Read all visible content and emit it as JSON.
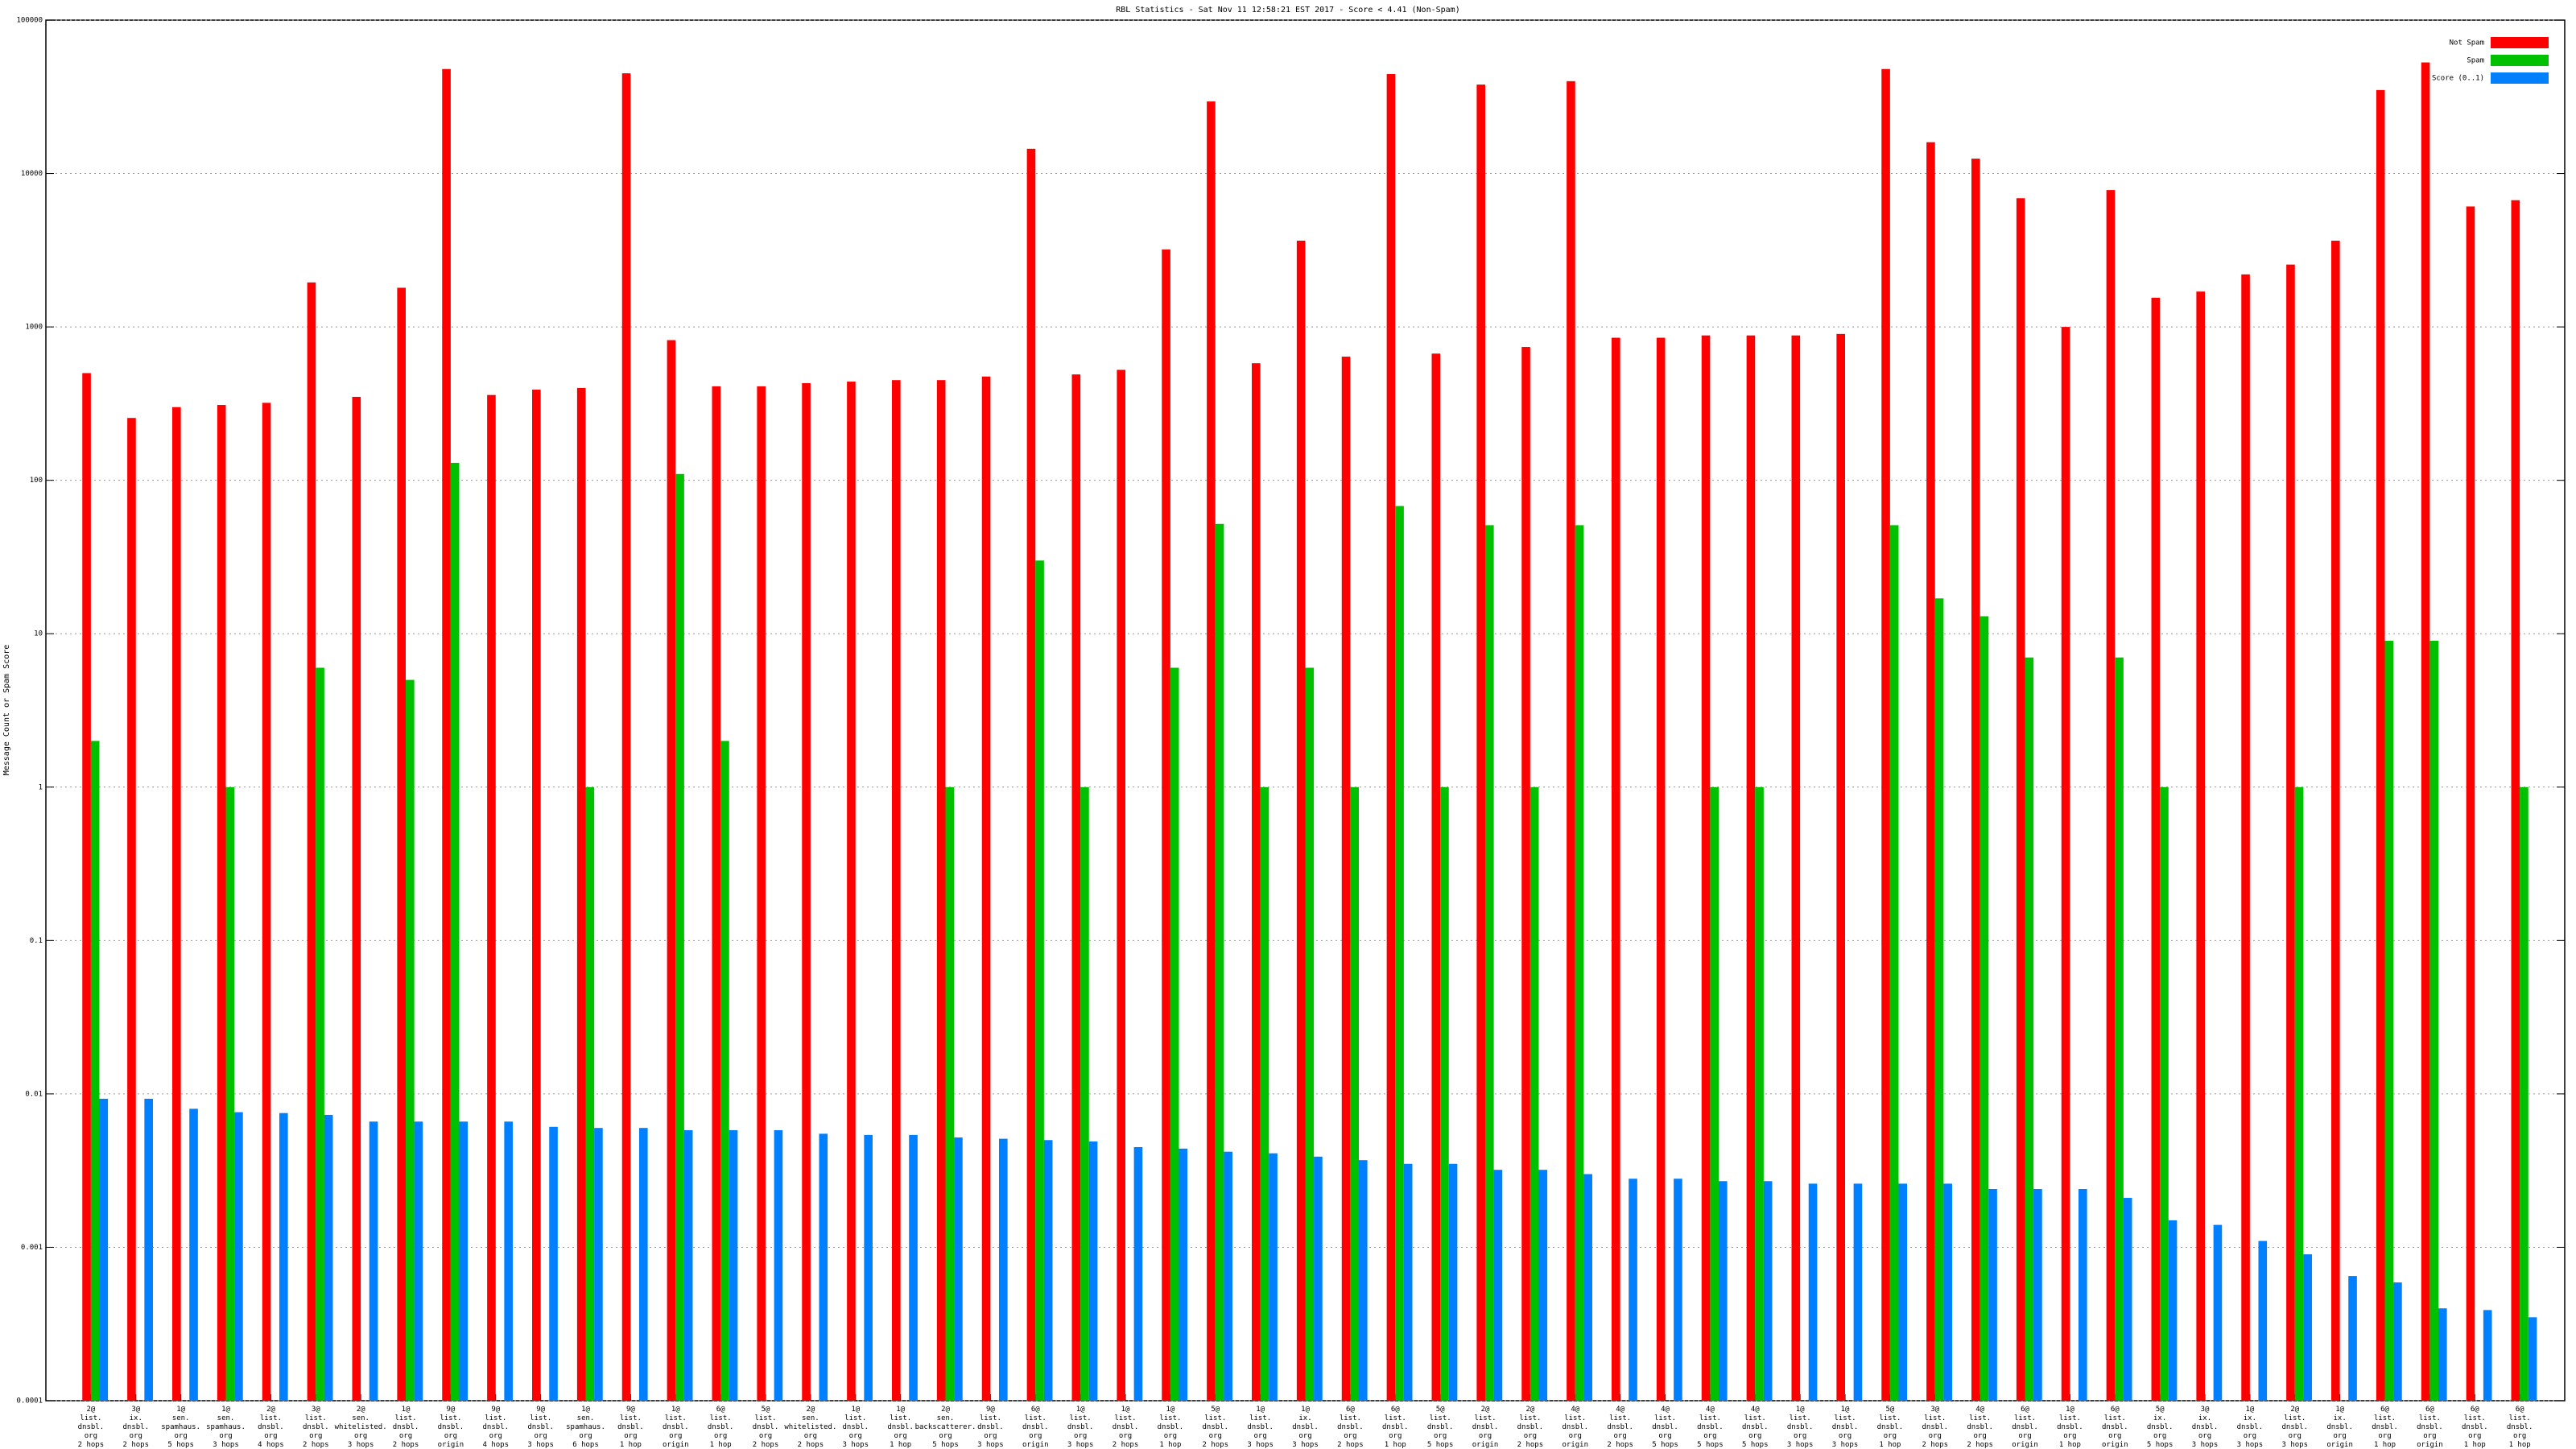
{
  "chart_data": {
    "type": "bar",
    "title": "RBL Statistics - Sat Nov 11 12:58:21 EST 2017 - Score < 4.41 (Non-Spam)",
    "ylabel": "Message Count or Spam Score",
    "yscale": "log",
    "grid": true,
    "legend": "upper right",
    "ylim": [
      0.0001,
      100000
    ],
    "yticks": [
      0.0001,
      0.001,
      0.01,
      0.1,
      1,
      10,
      100,
      1000,
      10000,
      100000
    ],
    "categories": [
      [
        "2@",
        "list.",
        "dnsbl.",
        "org",
        "2 hops"
      ],
      [
        "3@",
        "ix.",
        "dnsbl.",
        "org",
        "2 hops"
      ],
      [
        "1@",
        "sen.",
        "spamhaus.",
        "org",
        "5 hops"
      ],
      [
        "1@",
        "sen.",
        "spamhaus.",
        "org",
        "3 hops"
      ],
      [
        "2@",
        "list.",
        "dnsbl.",
        "org",
        "4 hops"
      ],
      [
        "3@",
        "list.",
        "dnsbl.",
        "org",
        "2 hops"
      ],
      [
        "2@",
        "sen.",
        "whitelisted.",
        "org",
        "3 hops"
      ],
      [
        "1@",
        "list.",
        "dnsbl.",
        "org",
        "2 hops"
      ],
      [
        "9@",
        "list.",
        "dnsbl.",
        "org",
        "origin"
      ],
      [
        "9@",
        "list.",
        "dnsbl.",
        "org",
        "4 hops"
      ],
      [
        "9@",
        "list.",
        "dnsbl.",
        "org",
        "3 hops"
      ],
      [
        "1@",
        "sen.",
        "spamhaus.",
        "org",
        "6 hops"
      ],
      [
        "9@",
        "list.",
        "dnsbl.",
        "org",
        "1 hop"
      ],
      [
        "1@",
        "list.",
        "dnsbl.",
        "org",
        "origin"
      ],
      [
        "6@",
        "list.",
        "dnsbl.",
        "org",
        "1 hop"
      ],
      [
        "5@",
        "list.",
        "dnsbl.",
        "org",
        "2 hops"
      ],
      [
        "2@",
        "sen.",
        "whitelisted.",
        "org",
        "2 hops"
      ],
      [
        "1@",
        "list.",
        "dnsbl.",
        "org",
        "3 hops"
      ],
      [
        "1@",
        "list.",
        "dnsbl.",
        "org",
        "1 hop"
      ],
      [
        "2@",
        "sen.",
        "backscatterer.",
        "org",
        "5 hops"
      ],
      [
        "9@",
        "list.",
        "dnsbl.",
        "org",
        "3 hops"
      ],
      [
        "6@",
        "list.",
        "dnsbl.",
        "org",
        "origin"
      ],
      [
        "1@",
        "list.",
        "dnsbl.",
        "org",
        "3 hops"
      ],
      [
        "1@",
        "list.",
        "dnsbl.",
        "org",
        "2 hops"
      ],
      [
        "1@",
        "list.",
        "dnsbl.",
        "org",
        "1 hop"
      ],
      [
        "5@",
        "list.",
        "dnsbl.",
        "org",
        "2 hops"
      ],
      [
        "1@",
        "list.",
        "dnsbl.",
        "org",
        "3 hops"
      ],
      [
        "1@",
        "ix.",
        "dnsbl.",
        "org",
        "3 hops"
      ],
      [
        "6@",
        "list.",
        "dnsbl.",
        "org",
        "2 hops"
      ],
      [
        "6@",
        "list.",
        "dnsbl.",
        "org",
        "1 hop"
      ],
      [
        "5@",
        "list.",
        "dnsbl.",
        "org",
        "5 hops"
      ],
      [
        "2@",
        "list.",
        "dnsbl.",
        "org",
        "origin"
      ],
      [
        "2@",
        "list.",
        "dnsbl.",
        "org",
        "2 hops"
      ],
      [
        "4@",
        "list.",
        "dnsbl.",
        "org",
        "origin"
      ],
      [
        "4@",
        "list.",
        "dnsbl.",
        "org",
        "2 hops"
      ],
      [
        "4@",
        "list.",
        "dnsbl.",
        "org",
        "5 hops"
      ],
      [
        "4@",
        "list.",
        "dnsbl.",
        "org",
        "5 hops"
      ],
      [
        "4@",
        "list.",
        "dnsbl.",
        "org",
        "5 hops"
      ],
      [
        "1@",
        "list.",
        "dnsbl.",
        "org",
        "3 hops"
      ],
      [
        "1@",
        "list.",
        "dnsbl.",
        "org",
        "3 hops"
      ],
      [
        "5@",
        "list.",
        "dnsbl.",
        "org",
        "1 hop"
      ],
      [
        "3@",
        "list.",
        "dnsbl.",
        "org",
        "2 hops"
      ],
      [
        "4@",
        "list.",
        "dnsbl.",
        "org",
        "2 hops"
      ],
      [
        "6@",
        "list.",
        "dnsbl.",
        "org",
        "origin"
      ],
      [
        "1@",
        "list.",
        "dnsbl.",
        "org",
        "1 hop"
      ],
      [
        "6@",
        "list.",
        "dnsbl.",
        "org",
        "origin"
      ],
      [
        "5@",
        "ix.",
        "dnsbl.",
        "org",
        "5 hops"
      ],
      [
        "3@",
        "ix.",
        "dnsbl.",
        "org",
        "3 hops"
      ],
      [
        "1@",
        "ix.",
        "dnsbl.",
        "org",
        "3 hops"
      ],
      [
        "2@",
        "list.",
        "dnsbl.",
        "org",
        "3 hops"
      ],
      [
        "1@",
        "ix.",
        "dnsbl.",
        "org",
        "origin"
      ],
      [
        "6@",
        "list.",
        "dnsbl.",
        "org",
        "1 hop"
      ],
      [
        "6@",
        "list.",
        "dnsbl.",
        "org",
        "origin"
      ],
      [
        "6@",
        "list.",
        "dnsbl.",
        "org",
        "1 hop"
      ],
      [
        "6@",
        "list.",
        "dnsbl.",
        "org",
        "1 hop"
      ]
    ],
    "series": [
      {
        "name": "Not Spam",
        "color": "#ff0000",
        "values": [
          500,
          255,
          300,
          310,
          320,
          1950,
          350,
          1800,
          48000,
          360,
          390,
          400,
          45000,
          820,
          410,
          410,
          430,
          440,
          450,
          450,
          475,
          14500,
          490,
          525,
          3200,
          29500,
          580,
          3650,
          640,
          44500,
          670,
          38000,
          740,
          40000,
          850,
          850,
          880,
          880,
          880,
          900,
          48000,
          16000,
          12500,
          6900,
          1000,
          7800,
          1550,
          1700,
          2200,
          2550,
          3650,
          35000,
          53000,
          6100,
          6700
        ]
      },
      {
        "name": "Spam",
        "color": "#00c000",
        "values": [
          2,
          null,
          null,
          1,
          null,
          6,
          null,
          5,
          130,
          null,
          null,
          1,
          null,
          110,
          2,
          null,
          null,
          null,
          null,
          1,
          null,
          30,
          1,
          null,
          6,
          52,
          1,
          6,
          1,
          68,
          1,
          51,
          1,
          51,
          null,
          null,
          1,
          1,
          null,
          null,
          51,
          17,
          13,
          7,
          null,
          7,
          1,
          null,
          null,
          1,
          null,
          9,
          9,
          null,
          1
        ]
      },
      {
        "name": "Score (0..1)",
        "color": "#0080ff",
        "values": [
          0.0093,
          0.0093,
          0.008,
          0.0076,
          0.0075,
          0.0073,
          0.0066,
          0.0066,
          0.0066,
          0.0066,
          0.0061,
          0.006,
          0.006,
          0.0058,
          0.0058,
          0.0058,
          0.0055,
          0.0054,
          0.0054,
          0.0052,
          0.0051,
          0.005,
          0.0049,
          0.0045,
          0.0044,
          0.0042,
          0.0041,
          0.0039,
          0.0037,
          0.0035,
          0.0035,
          0.0032,
          0.0032,
          0.003,
          0.0028,
          0.0028,
          0.0027,
          0.0027,
          0.0026,
          0.0026,
          0.0026,
          0.0026,
          0.0024,
          0.0024,
          0.0024,
          0.0021,
          0.0015,
          0.0014,
          0.0011,
          0.0009,
          0.00065,
          0.00059,
          0.0004,
          0.00039,
          0.00035
        ]
      }
    ]
  }
}
